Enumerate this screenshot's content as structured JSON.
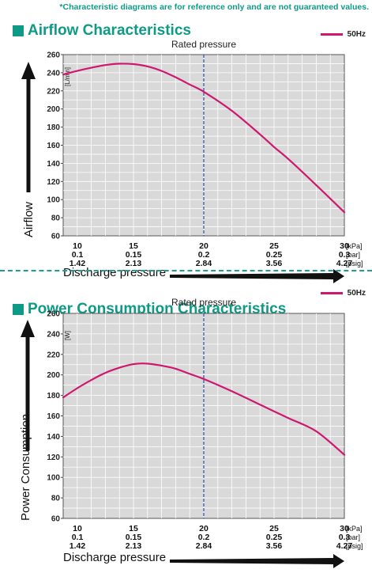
{
  "disclaimer": "*Characteristic diagrams are for reference only and are not guaranteed values.",
  "charts_meta": {
    "line_color": "#d0176f",
    "rated_line_color": "#2a4fa8",
    "plot_bg": "#d9d9d9"
  },
  "chart_data": [
    {
      "type": "line",
      "title": "Airflow Characteristics",
      "ylabel": "Airflow",
      "yunit": "[L/min]",
      "xlabel": "Discharge pressure",
      "annotation": "Rated pressure",
      "rated_x": 20,
      "ylim": [
        60,
        260
      ],
      "yticks": [
        60,
        80,
        100,
        120,
        140,
        160,
        180,
        200,
        220,
        240,
        260
      ],
      "xlim": [
        10,
        30
      ],
      "xticks": [
        {
          "kpa": "10",
          "bar": "0.1",
          "psig": "1.42"
        },
        {
          "kpa": "15",
          "bar": "0.15",
          "psig": "2.13"
        },
        {
          "kpa": "20",
          "bar": "0.2",
          "psig": "2.84"
        },
        {
          "kpa": "25",
          "bar": "0.25",
          "psig": "3.56"
        },
        {
          "kpa": "30",
          "bar": "0.3",
          "psig": "4.27"
        }
      ],
      "xunits": [
        "[kPa]",
        "[bar]",
        "[psig]"
      ],
      "grid": true,
      "legend_position": "top-right",
      "series": [
        {
          "name": "50Hz",
          "x": [
            10,
            11,
            12,
            13,
            14,
            15,
            16,
            17,
            18,
            19,
            20,
            22,
            24,
            25,
            26,
            28,
            30
          ],
          "y": [
            238,
            242,
            245.5,
            248.5,
            250,
            249.5,
            247,
            242,
            235,
            227,
            219,
            198,
            172,
            158,
            145,
            116,
            86
          ]
        }
      ]
    },
    {
      "type": "line",
      "title": "Power Consumption Characteristics",
      "ylabel": "Power Consumption",
      "yunit": "[W]",
      "xlabel": "Discharge pressure",
      "annotation": "Rated pressure",
      "rated_x": 20,
      "ylim": [
        60,
        260
      ],
      "yticks": [
        60,
        80,
        100,
        120,
        140,
        160,
        180,
        200,
        220,
        240,
        260
      ],
      "xlim": [
        10,
        30
      ],
      "xticks": [
        {
          "kpa": "10",
          "bar": "0.1",
          "psig": "1.42"
        },
        {
          "kpa": "15",
          "bar": "0.15",
          "psig": "2.13"
        },
        {
          "kpa": "20",
          "bar": "0.2",
          "psig": "2.84"
        },
        {
          "kpa": "25",
          "bar": "0.25",
          "psig": "3.56"
        },
        {
          "kpa": "30",
          "bar": "0.3",
          "psig": "4.27"
        }
      ],
      "xunits": [
        "[kPa]",
        "[bar]",
        "[psig]"
      ],
      "grid": true,
      "legend_position": "top-right",
      "series": [
        {
          "name": "50Hz",
          "x": [
            10,
            11,
            12,
            13,
            14,
            15,
            16,
            17,
            18,
            19,
            20,
            22,
            24,
            26,
            28,
            30
          ],
          "y": [
            178,
            187,
            195,
            202,
            207,
            210.5,
            211,
            209,
            206,
            201,
            196,
            184,
            171,
            158,
            145,
            122
          ]
        }
      ]
    }
  ]
}
